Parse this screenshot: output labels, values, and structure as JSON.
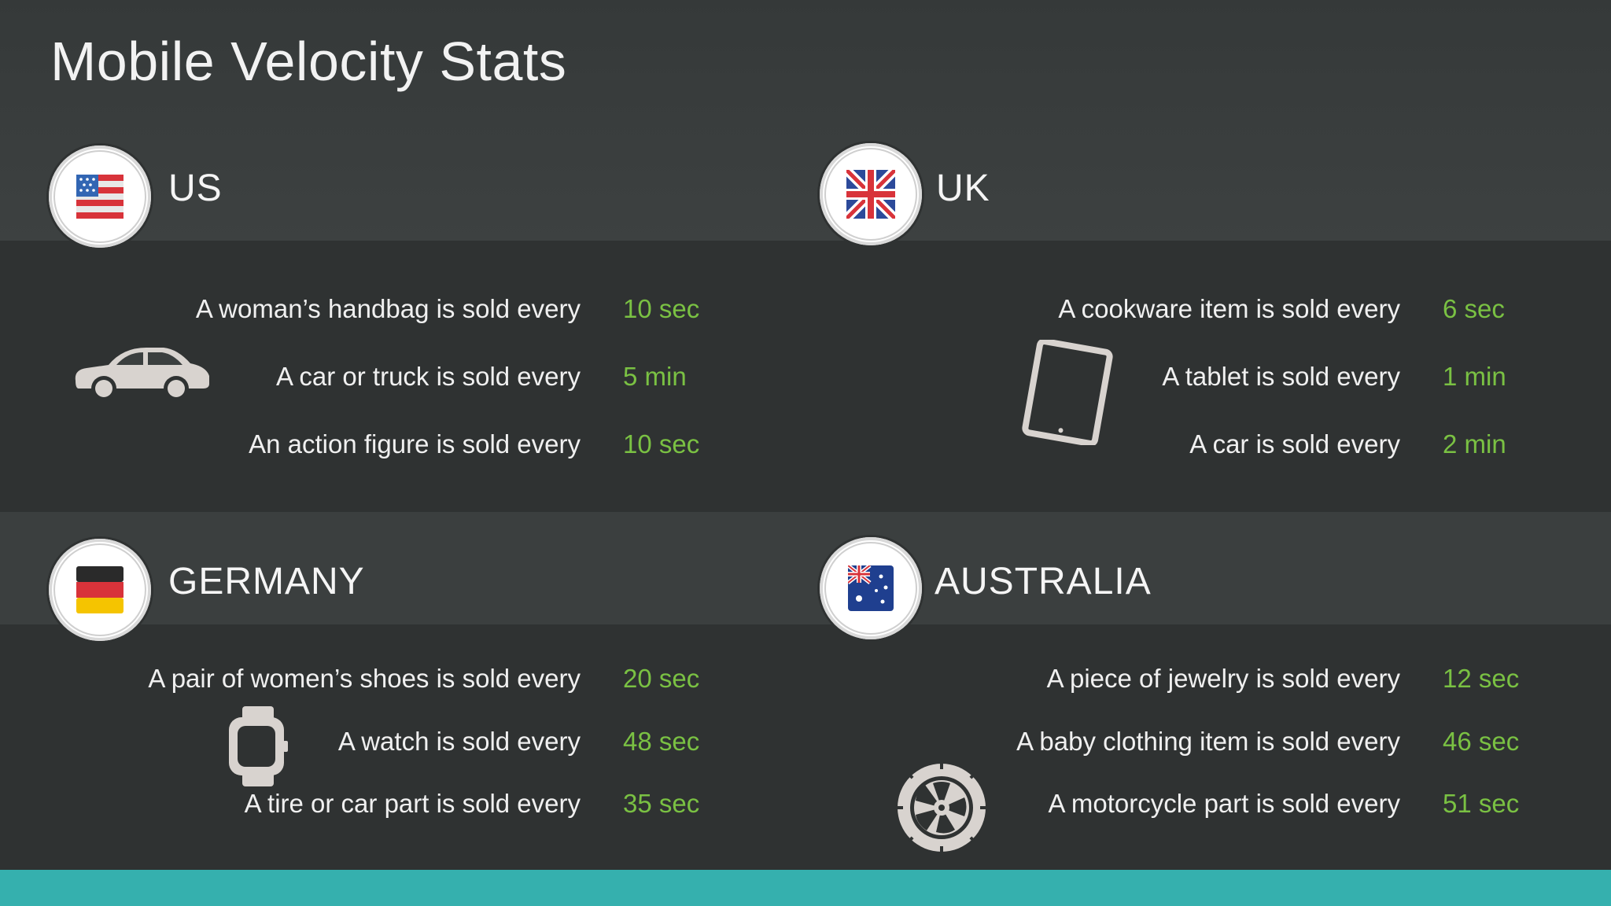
{
  "title": "Mobile Velocity Stats",
  "colors": {
    "accent_green": "#7ac143",
    "footer_teal": "#35b0ae",
    "background": "#3b3f3f",
    "band_dark": "#2f3232"
  },
  "regions": [
    {
      "country": "US",
      "flag_icon": "us-flag-icon",
      "item_icon": "car-icon",
      "stats": [
        {
          "label": "A woman’s handbag is sold every",
          "value": "10 sec"
        },
        {
          "label": "A car or truck is sold every",
          "value": "5 min"
        },
        {
          "label": "An action figure is sold every",
          "value": "10 sec"
        }
      ]
    },
    {
      "country": "UK",
      "flag_icon": "uk-flag-icon",
      "item_icon": "tablet-icon",
      "stats": [
        {
          "label": "A cookware item is sold every",
          "value": "6 sec"
        },
        {
          "label": "A tablet is sold every",
          "value": "1 min"
        },
        {
          "label": "A car is sold every",
          "value": "2 min"
        }
      ]
    },
    {
      "country": "GERMANY",
      "flag_icon": "germany-flag-icon",
      "item_icon": "watch-icon",
      "stats": [
        {
          "label": "A pair of women’s shoes is sold every",
          "value": "20 sec"
        },
        {
          "label": "A watch is sold every",
          "value": "48 sec"
        },
        {
          "label": "A tire or car part is sold every",
          "value": "35 sec"
        }
      ]
    },
    {
      "country": "AUSTRALIA",
      "flag_icon": "australia-flag-icon",
      "item_icon": "tire-icon",
      "stats": [
        {
          "label": "A piece of jewelry is sold every",
          "value": "12 sec"
        },
        {
          "label": "A baby clothing item is sold every",
          "value": "46 sec"
        },
        {
          "label": "A motorcycle part is sold every",
          "value": "51 sec"
        }
      ]
    }
  ]
}
